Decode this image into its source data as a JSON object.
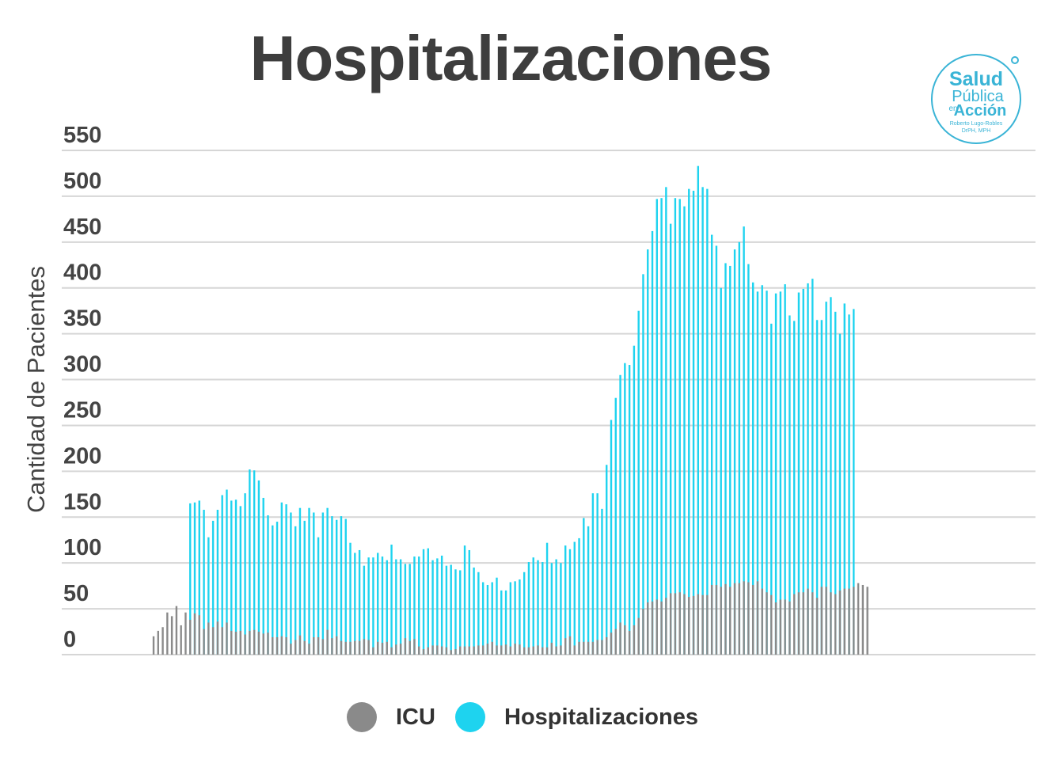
{
  "chart_data": {
    "type": "bar",
    "title": "Hospitalizaciones",
    "ylabel": "Cantidad de Pacientes",
    "xlabel": "",
    "ylim": [
      0,
      550
    ],
    "yticks": [
      0,
      50,
      100,
      150,
      200,
      250,
      300,
      350,
      400,
      450,
      500,
      550
    ],
    "grid": true,
    "legend_position": "bottom",
    "series": [
      {
        "name": "ICU",
        "color": "#8a8a8a",
        "values": [
          20,
          26,
          30,
          46,
          42,
          53,
          32,
          46,
          38,
          45,
          43,
          28,
          35,
          30,
          36,
          30,
          35,
          26,
          25,
          26,
          22,
          26,
          27,
          25,
          23,
          24,
          19,
          19,
          20,
          19,
          12,
          16,
          21,
          15,
          12,
          19,
          19,
          17,
          27,
          18,
          20,
          15,
          14,
          14,
          15,
          15,
          17,
          16,
          8,
          14,
          13,
          14,
          8,
          11,
          12,
          18,
          15,
          17,
          9,
          6,
          8,
          10,
          10,
          9,
          8,
          5,
          6,
          9,
          9,
          9,
          9,
          10,
          10,
          12,
          14,
          10,
          10,
          11,
          9,
          12,
          11,
          8,
          8,
          9,
          10,
          8,
          8,
          13,
          9,
          10,
          18,
          20,
          10,
          14,
          14,
          14,
          14,
          16,
          16,
          19,
          24,
          28,
          35,
          32,
          26,
          32,
          40,
          50,
          57,
          58,
          60,
          58,
          62,
          67,
          67,
          68,
          66,
          63,
          64,
          66,
          65,
          65,
          76,
          76,
          74,
          77,
          74,
          78,
          78,
          80,
          79,
          76,
          80,
          72,
          68,
          65,
          57,
          60,
          60,
          58,
          66,
          68,
          68,
          72,
          68,
          62,
          74,
          74,
          68,
          66,
          70,
          72,
          72,
          74,
          78,
          76,
          74
        ]
      },
      {
        "name": "Hospitalizaciones",
        "color": "#1ed3ef",
        "values": [
          null,
          null,
          null,
          null,
          null,
          null,
          null,
          null,
          165,
          166,
          168,
          158,
          128,
          146,
          158,
          174,
          180,
          168,
          169,
          162,
          176,
          202,
          201,
          190,
          171,
          152,
          141,
          145,
          166,
          164,
          155,
          140,
          160,
          146,
          160,
          155,
          128,
          155,
          160,
          151,
          147,
          151,
          148,
          122,
          111,
          114,
          97,
          106,
          106,
          111,
          107,
          103,
          120,
          104,
          104,
          99,
          99,
          107,
          107,
          115,
          116,
          103,
          105,
          108,
          97,
          98,
          93,
          92,
          119,
          114,
          95,
          90,
          79,
          76,
          79,
          84,
          70,
          70,
          79,
          80,
          82,
          90,
          101,
          106,
          103,
          101,
          122,
          100,
          104,
          100,
          119,
          115,
          123,
          127,
          149,
          140,
          176,
          176,
          159,
          207,
          256,
          280,
          305,
          318,
          316,
          337,
          375,
          415,
          442,
          462,
          497,
          498,
          510,
          470,
          498,
          497,
          489,
          508,
          506,
          533,
          510,
          508,
          458,
          446,
          400,
          427,
          424,
          442,
          450,
          467,
          426,
          406,
          396,
          403,
          397,
          361,
          394,
          396,
          404,
          370,
          364,
          395,
          399,
          405,
          410,
          365,
          365,
          385,
          390,
          374,
          350,
          383,
          371,
          377
        ]
      }
    ]
  },
  "legend": {
    "items": [
      {
        "label": "ICU",
        "color": "#8a8a8a"
      },
      {
        "label": "Hospitalizaciones",
        "color": "#1ed3ef"
      }
    ]
  },
  "logo": {
    "line1": "Salud",
    "line2": "Pública",
    "line3": "en",
    "line4": "Acción",
    "line5": "Roberto Lugo-Robles",
    "line6": "DrPH, MPH",
    "color": "#3ab4d6"
  }
}
